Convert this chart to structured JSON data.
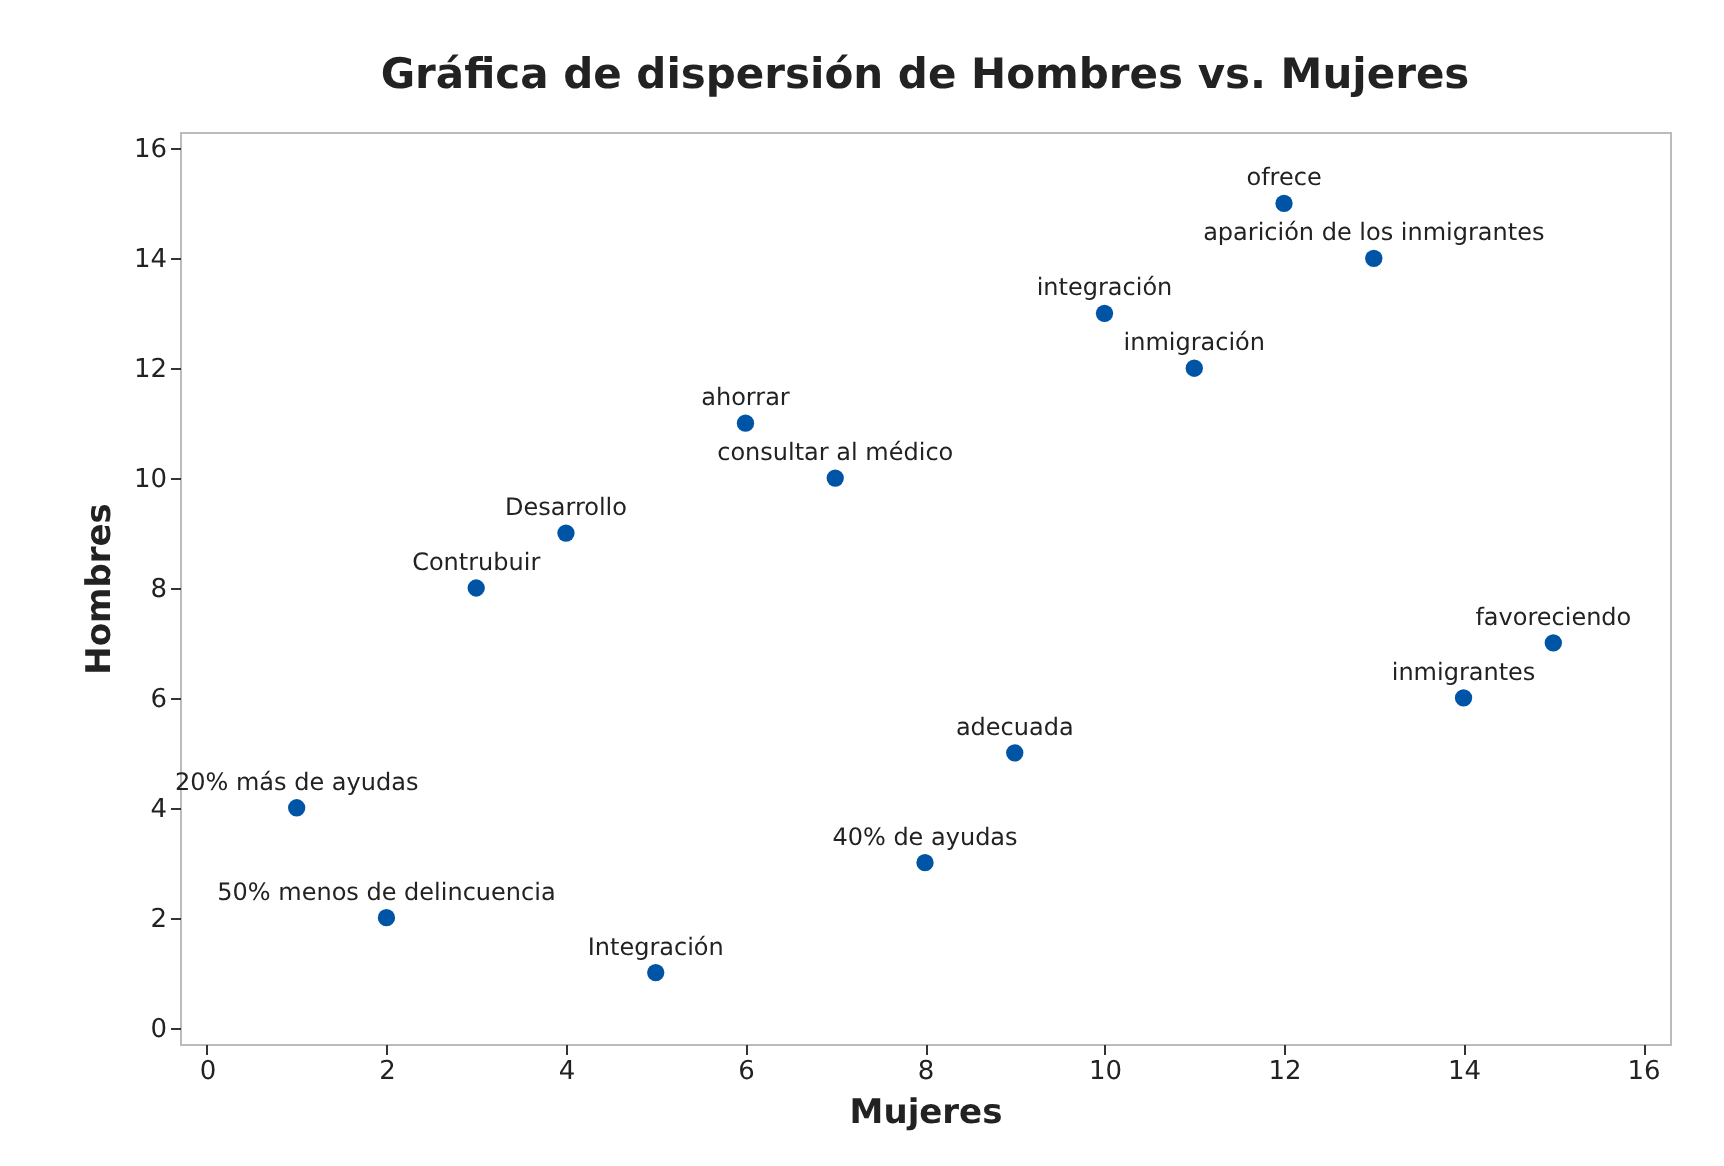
{
  "chart_data": {
    "type": "scatter",
    "title": "Gráfica de dispersión de Hombres vs. Mujeres",
    "xlabel": "Mujeres",
    "ylabel": "Hombres",
    "x": [
      1,
      2,
      3,
      4,
      5,
      6,
      7,
      8,
      9,
      10,
      11,
      12,
      13,
      14,
      15
    ],
    "values": [
      4,
      2,
      8,
      9,
      1,
      11,
      10,
      3,
      5,
      13,
      12,
      15,
      14,
      6,
      7
    ],
    "color": "#0054a6",
    "marker": "circle",
    "grid": false,
    "xlim": [
      -0.3,
      16.3
    ],
    "ylim": [
      -0.3,
      16.3
    ],
    "xticks": [
      0,
      2,
      4,
      6,
      8,
      10,
      12,
      14,
      16
    ],
    "yticks": [
      0,
      2,
      4,
      6,
      8,
      10,
      12,
      14,
      16
    ],
    "annotations": [
      {
        "text": "20% más de ayudas",
        "x": 1,
        "y": 4
      },
      {
        "text": "50% menos de delincuencia",
        "x": 2,
        "y": 2
      },
      {
        "text": "Contrubuir",
        "x": 3,
        "y": 8
      },
      {
        "text": "Desarrollo",
        "x": 4,
        "y": 9
      },
      {
        "text": "Integración",
        "x": 5,
        "y": 1
      },
      {
        "text": "ahorrar",
        "x": 6,
        "y": 11
      },
      {
        "text": "consultar al médico",
        "x": 7,
        "y": 10
      },
      {
        "text": "40% de ayudas",
        "x": 8,
        "y": 3
      },
      {
        "text": "adecuada",
        "x": 9,
        "y": 5
      },
      {
        "text": "integración",
        "x": 10,
        "y": 13
      },
      {
        "text": "inmigración",
        "x": 11,
        "y": 12
      },
      {
        "text": "ofrece",
        "x": 12,
        "y": 15
      },
      {
        "text": "aparición de los inmigrantes",
        "x": 13,
        "y": 14
      },
      {
        "text": "inmigrantes",
        "x": 14,
        "y": 6
      },
      {
        "text": "favoreciendo",
        "x": 15,
        "y": 7
      }
    ]
  }
}
